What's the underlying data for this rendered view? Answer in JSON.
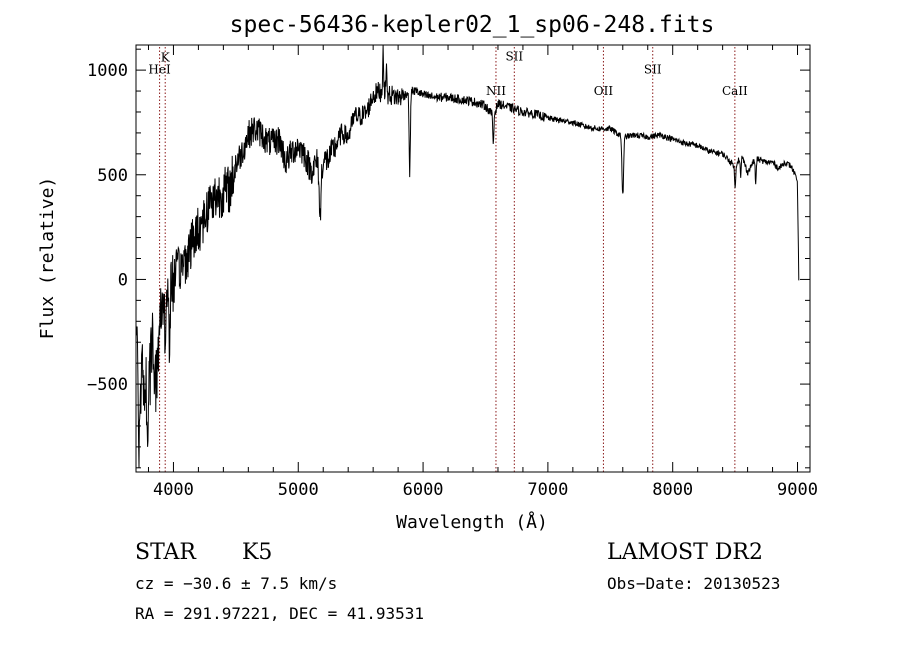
{
  "chart_data": {
    "type": "line",
    "title": "spec-56436-kepler02_1_sp06-248.fits",
    "xlabel": "Wavelength (Å)",
    "ylabel": "Flux (relative)",
    "xlim": [
      3700,
      9100
    ],
    "ylim": [
      -920,
      1120
    ],
    "xticks": [
      4000,
      5000,
      6000,
      7000,
      8000,
      9000
    ],
    "yticks": [
      -500,
      0,
      500,
      1000
    ],
    "grid": false,
    "line_color": "#000000",
    "marker_color": "#8b1a1a",
    "spectrum": {
      "anchors_x": [
        3700,
        3720,
        3760,
        3800,
        3830,
        3860,
        3900,
        3930,
        3960,
        4000,
        4050,
        4100,
        4150,
        4200,
        4250,
        4300,
        4350,
        4400,
        4450,
        4500,
        4550,
        4600,
        4650,
        4700,
        4750,
        4800,
        4850,
        4900,
        4950,
        5000,
        5050,
        5100,
        5150,
        5200,
        5250,
        5300,
        5350,
        5400,
        5450,
        5500,
        5550,
        5600,
        5650,
        5700,
        5750,
        5800,
        5850,
        5890,
        5950,
        6000,
        6100,
        6200,
        6300,
        6400,
        6500,
        6563,
        6600,
        6700,
        6800,
        6900,
        7000,
        7100,
        7200,
        7300,
        7400,
        7500,
        7600,
        7700,
        7800,
        7900,
        8000,
        8100,
        8200,
        8300,
        8400,
        8450,
        8500,
        8550,
        8600,
        8662,
        8700,
        8750,
        8800,
        8850,
        8900,
        8950,
        8980,
        9000,
        9010
      ],
      "anchors_y": [
        -200,
        -550,
        -450,
        -600,
        -250,
        -500,
        -150,
        -50,
        -100,
        0,
        50,
        100,
        180,
        240,
        300,
        380,
        400,
        420,
        430,
        550,
        610,
        690,
        720,
        700,
        660,
        650,
        670,
        560,
        610,
        640,
        600,
        520,
        560,
        560,
        580,
        640,
        700,
        680,
        780,
        780,
        800,
        880,
        900,
        880,
        880,
        870,
        880,
        900,
        900,
        880,
        870,
        870,
        860,
        850,
        830,
        780,
        840,
        820,
        800,
        790,
        770,
        760,
        750,
        730,
        720,
        720,
        680,
        690,
        680,
        690,
        670,
        650,
        640,
        610,
        600,
        570,
        540,
        600,
        510,
        580,
        570,
        560,
        560,
        530,
        560,
        540,
        500,
        450,
        0
      ],
      "noise": [
        {
          "from": 3700,
          "to": 4000,
          "amp": 170
        },
        {
          "from": 4000,
          "to": 4500,
          "amp": 120
        },
        {
          "from": 4500,
          "to": 5300,
          "amp": 70
        },
        {
          "from": 5300,
          "to": 5850,
          "amp": 50
        },
        {
          "from": 5850,
          "to": 7000,
          "amp": 22
        },
        {
          "from": 7000,
          "to": 9100,
          "amp": 14
        }
      ],
      "absorption_dips": [
        {
          "x": 3725,
          "depth": 320,
          "width": 6
        },
        {
          "x": 3790,
          "depth": 280,
          "width": 5
        },
        {
          "x": 3935,
          "depth": 260,
          "width": 6
        },
        {
          "x": 3970,
          "depth": 200,
          "width": 6
        },
        {
          "x": 5175,
          "depth": 270,
          "width": 10
        },
        {
          "x": 5893,
          "depth": 390,
          "width": 7
        },
        {
          "x": 6563,
          "depth": 130,
          "width": 6
        },
        {
          "x": 7600,
          "depth": 280,
          "width": 9
        },
        {
          "x": 8500,
          "depth": 110,
          "width": 6
        },
        {
          "x": 8545,
          "depth": 110,
          "width": 6
        },
        {
          "x": 8665,
          "depth": 120,
          "width": 6
        }
      ],
      "emission_spikes": [
        {
          "x": 5680,
          "height": 260,
          "width": 5
        },
        {
          "x": 5705,
          "height": 160,
          "width": 5
        }
      ]
    },
    "line_markers": [
      {
        "label": "K",
        "x": 3934,
        "label_y": 1040
      },
      {
        "label": "HeI",
        "x": 3889,
        "label_y": 985
      },
      {
        "label": "SII",
        "x": 6731,
        "label_y": 1045
      },
      {
        "label": "NII",
        "x": 6584,
        "label_y": 880
      },
      {
        "label": "OII",
        "x": 7445,
        "label_y": 880
      },
      {
        "label": "SII",
        "x": 7840,
        "label_y": 985
      },
      {
        "label": "CaII",
        "x": 8498,
        "label_y": 880
      }
    ]
  },
  "info": {
    "object_class": "STAR",
    "subclass": "K5",
    "survey": "LAMOST DR2",
    "redshift": "cz = −30.6 ± 7.5 km/s",
    "obs_date": "Obs−Date: 20130523",
    "coords": "RA = 291.97221, DEC =  41.93531"
  }
}
